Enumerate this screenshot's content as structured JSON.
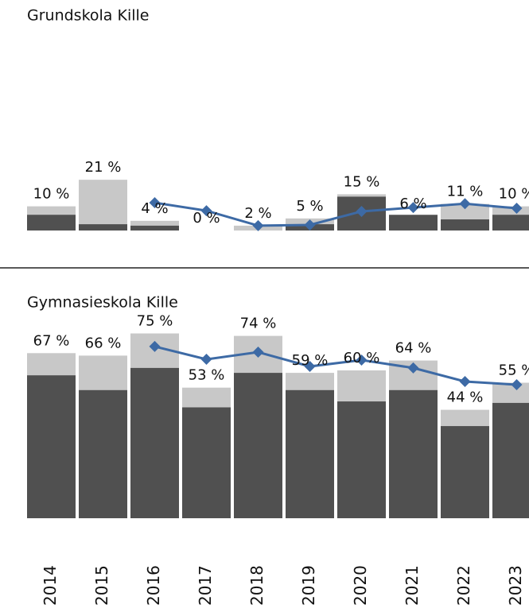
{
  "chart_data": [
    {
      "type": "bar",
      "title": "Grundskola Kille",
      "ylim": [
        0,
        25
      ],
      "series": [
        {
          "type": "bar",
          "color": "#c8c8c8",
          "values": [
            10,
            21,
            4,
            0,
            2,
            5,
            15,
            6,
            11,
            10
          ],
          "value_labels": [
            "10 %",
            "21 %",
            "4 %",
            "0 %",
            "2 %",
            "5 %",
            "15 %",
            "6 %",
            "11 %",
            "10 %"
          ]
        },
        {
          "type": "bar",
          "color": "#505050",
          "values": [
            6.5,
            2.6,
            2,
            0,
            0,
            2.6,
            14,
            6.5,
            4.6,
            6.5
          ]
        },
        {
          "type": "line",
          "color": "#3d6aa5",
          "values": [
            null,
            null,
            11.5,
            8.2,
            2,
            2.3,
            7.9,
            9.5,
            11.1,
            9.2
          ]
        }
      ]
    },
    {
      "type": "bar",
      "title": "Gymnasieskola Kille",
      "categories": [
        "2014",
        "2015",
        "2016",
        "2017",
        "2018",
        "2019",
        "2020",
        "2021",
        "2022",
        "2023"
      ],
      "ylim": [
        0,
        80
      ],
      "series": [
        {
          "type": "bar",
          "color": "#c8c8c8",
          "values": [
            67,
            66,
            75,
            53,
            74,
            59,
            60,
            64,
            44,
            55
          ],
          "value_labels": [
            "67 %",
            "66 %",
            "75 %",
            "53 %",
            "74 %",
            "59 %",
            "60 %",
            "64 %",
            "44 %",
            "55 %"
          ]
        },
        {
          "type": "bar",
          "color": "#505050",
          "values": [
            58,
            52,
            61,
            45,
            59,
            52,
            47.4,
            52,
            37.4,
            46.8
          ]
        },
        {
          "type": "line",
          "color": "#3d6aa5",
          "values": [
            null,
            null,
            69.7,
            64.5,
            67.4,
            61.6,
            64.2,
            61,
            55.5,
            54.2
          ]
        }
      ]
    }
  ]
}
